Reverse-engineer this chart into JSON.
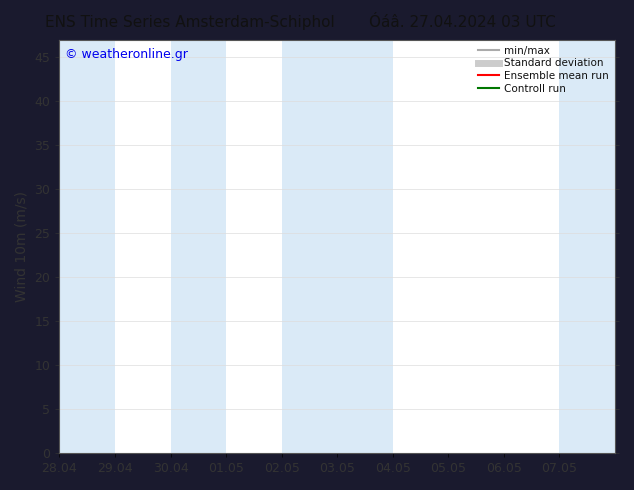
{
  "title_left": "ENS Time Series Amsterdam-Schiphol",
  "title_right": "Óáâ. 27.04.2024 03 UTC",
  "ylabel": "Wind 10m (m/s)",
  "watermark": "© weatheronline.gr",
  "fig_bg_color": "#1a1a2e",
  "plot_bg_color": "#ffffff",
  "shaded_band_color": "#daeaf7",
  "xlim_start": 0,
  "xlim_end": 10,
  "ylim": [
    0,
    47
  ],
  "yticks": [
    0,
    5,
    10,
    15,
    20,
    25,
    30,
    35,
    40,
    45
  ],
  "xtick_labels": [
    "28.04",
    "29.04",
    "30.04",
    "01.05",
    "02.05",
    "03.05",
    "04.05",
    "05.05",
    "06.05",
    "07.05"
  ],
  "shaded_bands": [
    {
      "xmin": 0.0,
      "xmax": 1.0
    },
    {
      "xmin": 2.0,
      "xmax": 3.0
    },
    {
      "xmin": 4.0,
      "xmax": 5.0
    },
    {
      "xmin": 5.0,
      "xmax": 6.0
    },
    {
      "xmin": 9.0,
      "xmax": 10.0
    }
  ],
  "legend_entries": [
    {
      "label": "min/max",
      "color": "#aaaaaa",
      "lw": 1.5,
      "style": "solid"
    },
    {
      "label": "Standard deviation",
      "color": "#cccccc",
      "lw": 5,
      "style": "solid"
    },
    {
      "label": "Ensemble mean run",
      "color": "#ff0000",
      "lw": 1.5,
      "style": "solid"
    },
    {
      "label": "Controll run",
      "color": "#007700",
      "lw": 1.5,
      "style": "solid"
    }
  ],
  "title_fontsize": 11,
  "axis_label_fontsize": 10,
  "tick_fontsize": 9,
  "watermark_color": "#0000ee",
  "watermark_fontsize": 9,
  "spine_color": "#555555",
  "tick_color": "#333333",
  "ylabel_color": "#333333",
  "title_color": "#111111"
}
